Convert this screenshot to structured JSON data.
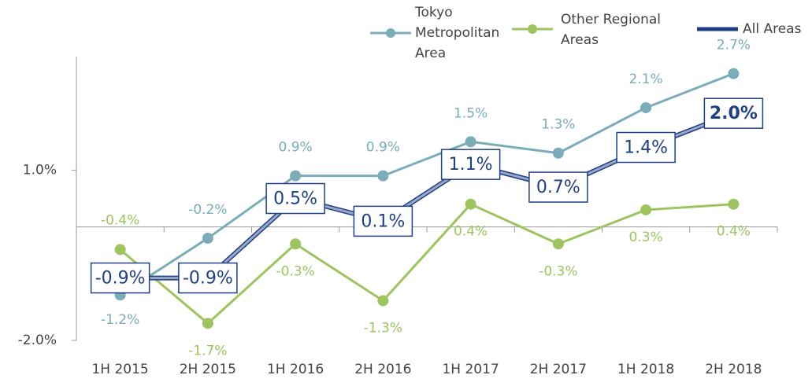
{
  "chart_data": {
    "type": "line",
    "categories": [
      "1H 2015",
      "2H 2015",
      "1H 2016",
      "2H 2016",
      "1H 2017",
      "2H 2017",
      "1H 2018",
      "2H 2018"
    ],
    "series": [
      {
        "name": "Tokyo Metropolitan Area",
        "color": "#7aadb8",
        "values": [
          -1.2,
          -0.2,
          0.9,
          0.9,
          1.5,
          1.3,
          2.1,
          2.7
        ],
        "value_labels": [
          "-1.2%",
          "-0.2%",
          "0.9%",
          "0.9%",
          "1.5%",
          "1.3%",
          "2.1%",
          "2.7%"
        ]
      },
      {
        "name": "Other Regional Areas",
        "color": "#9dc45f",
        "values": [
          -0.4,
          -1.7,
          -0.3,
          -1.3,
          0.4,
          -0.3,
          0.3,
          0.4
        ],
        "value_labels": [
          "-0.4%",
          "-1.7%",
          "-0.3%",
          "-1.3%",
          "0.4%",
          "-0.3%",
          "0.3%",
          "0.4%"
        ]
      },
      {
        "name": "All Areas",
        "color": "#1f3f86",
        "values": [
          -0.9,
          -0.9,
          0.5,
          0.1,
          1.1,
          0.7,
          1.4,
          2.0
        ],
        "value_labels": [
          "-0.9%",
          "-0.9%",
          "0.5%",
          "0.1%",
          "1.1%",
          "0.7%",
          "1.4%",
          "2.0%"
        ]
      }
    ],
    "ylim": [
      -2,
      3
    ],
    "yticks": [
      {
        "value": 1,
        "label": "1.0%"
      },
      {
        "value": -2,
        "label": "-2.0%"
      }
    ]
  }
}
